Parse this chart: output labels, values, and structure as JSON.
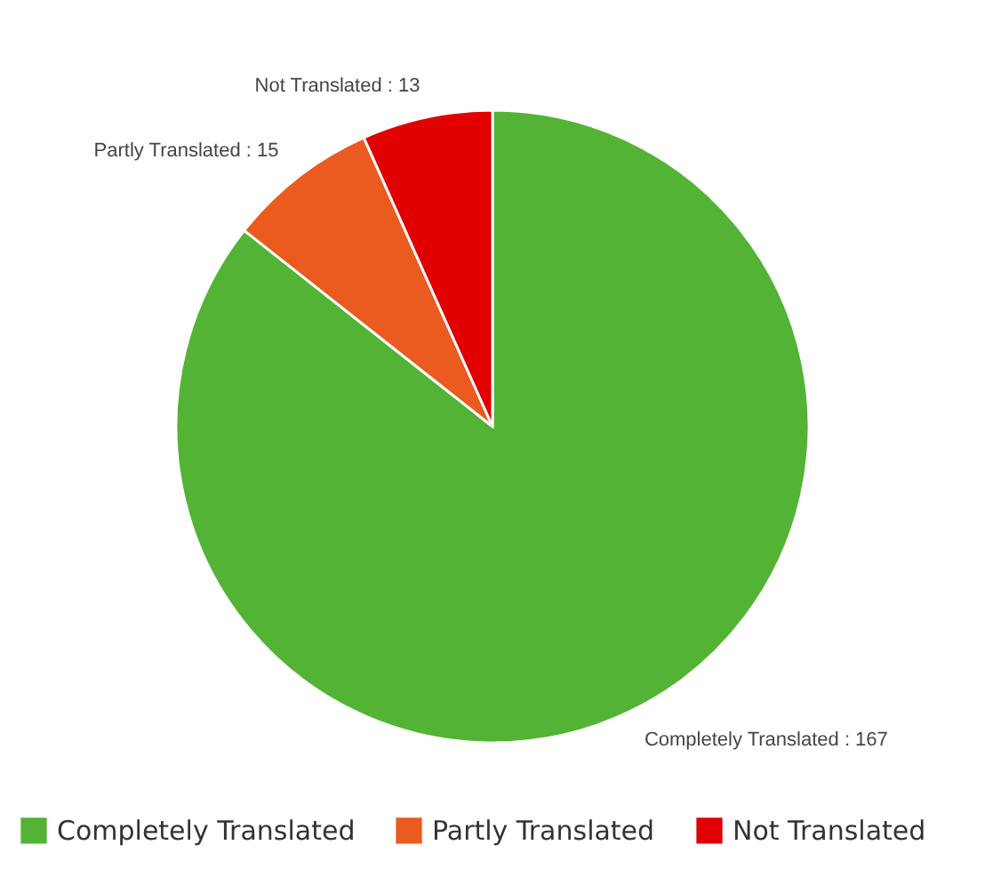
{
  "chart_data": {
    "type": "pie",
    "categories": [
      "Completely Translated",
      "Partly Translated",
      "Not Translated"
    ],
    "values": [
      167,
      15,
      13
    ],
    "colors": [
      "#52b334",
      "#eb5a1e",
      "#e00000"
    ],
    "value_labels": [
      "Completely Translated : 167",
      "Partly Translated : 15",
      "Not Translated : 13"
    ],
    "legend": "bottom"
  }
}
